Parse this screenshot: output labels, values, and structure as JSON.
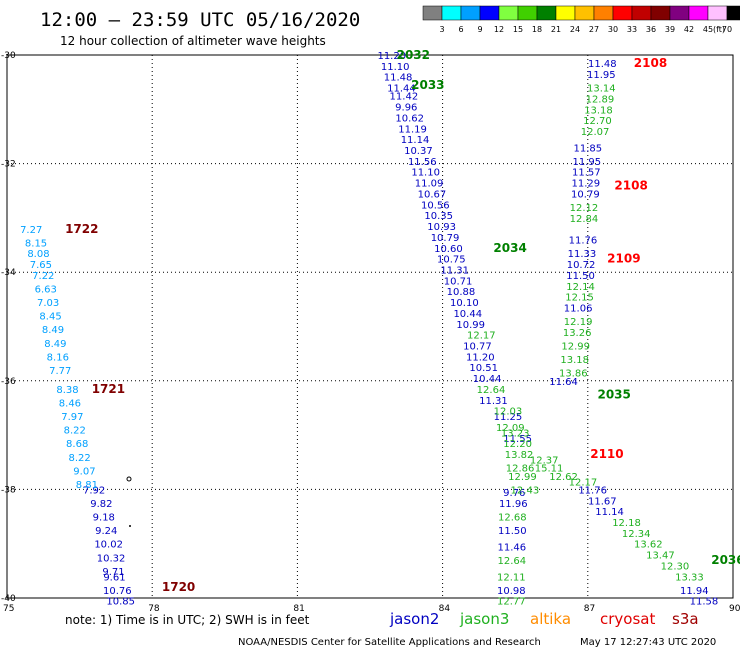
{
  "header": {
    "title": "12:00 – 23:59 UTC 05/16/2020",
    "subtitle": "12 hour collection of altimeter wave heights"
  },
  "colorbar": {
    "labels": [
      "3",
      "6",
      "9",
      "12",
      "15",
      "18",
      "21",
      "24",
      "27",
      "30",
      "33",
      "36",
      "39",
      "42",
      "45",
      "70"
    ],
    "unit": "(ft)",
    "colors": [
      "#808080",
      "#00ffff",
      "#00a0ff",
      "#0000ff",
      "#80ff40",
      "#40d000",
      "#008000",
      "#ffff00",
      "#ffc000",
      "#ff8000",
      "#ff0000",
      "#c00000",
      "#800000",
      "#800080",
      "#ff00ff",
      "#ffc0ff",
      "#000000"
    ]
  },
  "footer": {
    "note": "note:  1) Time is in UTC;  2) SWH is in feet",
    "credit": "NOAA/NESDIS Center for Satellite Applications and Research",
    "timestamp": "May 17 12:27:43 UTC 2020",
    "satellites": [
      {
        "name": "jason2",
        "color": "#0000c0"
      },
      {
        "name": "jason3",
        "color": "#20b020"
      },
      {
        "name": "altika",
        "color": "#ff8c00"
      },
      {
        "name": "cryosat",
        "color": "#e00000"
      },
      {
        "name": "s3a",
        "color": "#a00000"
      }
    ]
  },
  "chart_data": {
    "type": "scatter",
    "title": "12:00 – 23:59 UTC 05/16/2020",
    "xlim": [
      75,
      90
    ],
    "ylim": [
      -40,
      -30
    ],
    "xticks": [
      75,
      78,
      81,
      84,
      87,
      90
    ],
    "yticks": [
      -30,
      -32,
      -34,
      -36,
      -38,
      -40
    ],
    "xtick_labels": [
      "75",
      "78",
      "81",
      "84",
      "87",
      "90"
    ],
    "ytick_labels": [
      "-30",
      "-32",
      "-34",
      "-36",
      "-38",
      "-40"
    ],
    "grid": true,
    "colors": {
      "jason2": "#0000c0",
      "jason3": "#20b020",
      "s3a": "#00a0ff",
      "pass_green": "#008000",
      "pass_red": "#ff0000",
      "pass_maroon": "#800000"
    },
    "pass_labels": [
      {
        "text": "2032",
        "x": 83.05,
        "y": -30.0,
        "color": "pass_green"
      },
      {
        "text": "2033",
        "x": 83.35,
        "y": -30.55,
        "color": "pass_green"
      },
      {
        "text": "2034",
        "x": 85.05,
        "y": -33.55,
        "color": "pass_green"
      },
      {
        "text": "2035",
        "x": 87.2,
        "y": -36.25,
        "color": "pass_green"
      },
      {
        "text": "2036",
        "x": 89.55,
        "y": -39.3,
        "color": "pass_green"
      },
      {
        "text": "2108",
        "x": 87.95,
        "y": -30.15,
        "color": "pass_red"
      },
      {
        "text": "2108",
        "x": 87.55,
        "y": -32.4,
        "color": "pass_red"
      },
      {
        "text": "2109",
        "x": 87.4,
        "y": -33.75,
        "color": "pass_red"
      },
      {
        "text": "2110",
        "x": 87.05,
        "y": -37.35,
        "color": "pass_red"
      },
      {
        "text": "1722",
        "x": 76.2,
        "y": -33.2,
        "color": "pass_maroon"
      },
      {
        "text": "1721",
        "x": 76.75,
        "y": -36.15,
        "color": "pass_maroon"
      },
      {
        "text": "1720",
        "x": 78.2,
        "y": -39.8,
        "color": "pass_maroon"
      }
    ],
    "series": [
      {
        "name": "jason2",
        "color": "jason2",
        "points": [
          [
            82.95,
            -30.0,
            "11.20"
          ],
          [
            83.02,
            -30.2,
            "11.10"
          ],
          [
            83.08,
            -30.4,
            "11.48"
          ],
          [
            83.15,
            -30.6,
            "11.44"
          ],
          [
            83.2,
            -30.75,
            "11.42"
          ],
          [
            83.25,
            -30.95,
            "9.96"
          ],
          [
            83.32,
            -31.15,
            "10.62"
          ],
          [
            83.38,
            -31.35,
            "11.19"
          ],
          [
            83.43,
            -31.55,
            "11.14"
          ],
          [
            83.5,
            -31.75,
            "10.37"
          ],
          [
            83.58,
            -31.95,
            "11.56"
          ],
          [
            83.65,
            -32.15,
            "11.10"
          ],
          [
            83.72,
            -32.35,
            "11.09"
          ],
          [
            83.78,
            -32.55,
            "10.67"
          ],
          [
            83.85,
            -32.75,
            "10.56"
          ],
          [
            83.92,
            -32.95,
            "10.35"
          ],
          [
            83.98,
            -33.15,
            "10.93"
          ],
          [
            84.05,
            -33.35,
            "10.79"
          ],
          [
            84.12,
            -33.55,
            "10.60"
          ],
          [
            84.18,
            -33.75,
            "10.75"
          ],
          [
            84.25,
            -33.95,
            "11.31"
          ],
          [
            84.32,
            -34.15,
            "10.71"
          ],
          [
            84.38,
            -34.35,
            "10.88"
          ],
          [
            84.45,
            -34.55,
            "10.10"
          ],
          [
            84.52,
            -34.75,
            "10.44"
          ],
          [
            84.58,
            -34.95,
            "10.99"
          ],
          [
            84.72,
            -35.35,
            "10.77"
          ],
          [
            84.78,
            -35.55,
            "11.20"
          ],
          [
            84.85,
            -35.75,
            "10.51"
          ],
          [
            84.92,
            -35.95,
            "10.44"
          ],
          [
            85.05,
            -36.35,
            "11.31"
          ],
          [
            85.35,
            -36.65,
            "11.25"
          ],
          [
            85.55,
            -37.05,
            "11.55"
          ],
          [
            85.48,
            -38.05,
            "9.76"
          ],
          [
            85.46,
            -38.25,
            "11.96"
          ],
          [
            85.44,
            -38.75,
            "11.50"
          ],
          [
            85.43,
            -39.05,
            "11.46"
          ],
          [
            85.42,
            -39.85,
            "10.98"
          ],
          [
            87.3,
            -30.15,
            "11.48"
          ],
          [
            87.28,
            -30.35,
            "11.95"
          ],
          [
            87.0,
            -31.7,
            "11.85"
          ],
          [
            86.98,
            -31.95,
            "11.95"
          ],
          [
            86.97,
            -32.15,
            "11.57"
          ],
          [
            86.96,
            -32.35,
            "11.29"
          ],
          [
            86.95,
            -32.55,
            "10.79"
          ],
          [
            86.9,
            -33.4,
            "11.76"
          ],
          [
            86.88,
            -33.65,
            "11.33"
          ],
          [
            86.86,
            -33.85,
            "10.72"
          ],
          [
            86.85,
            -34.05,
            "11.50"
          ],
          [
            86.8,
            -34.65,
            "11.06"
          ],
          [
            86.5,
            -36.0,
            "11.64"
          ],
          [
            87.1,
            -38.0,
            "11.76"
          ],
          [
            87.3,
            -38.2,
            "11.67"
          ],
          [
            87.45,
            -38.4,
            "11.14"
          ],
          [
            89.2,
            -39.85,
            "11.94"
          ],
          [
            89.4,
            -40.05,
            "11.58"
          ],
          [
            76.8,
            -38.0,
            "7.92"
          ],
          [
            76.95,
            -38.25,
            "9.82"
          ],
          [
            77.0,
            -38.5,
            "9.18"
          ],
          [
            77.05,
            -38.75,
            "9.24"
          ],
          [
            77.1,
            -39.0,
            "10.02"
          ],
          [
            77.15,
            -39.25,
            "10.32"
          ],
          [
            77.2,
            -39.5,
            "9.71"
          ],
          [
            77.22,
            -39.6,
            "9.61"
          ],
          [
            77.28,
            -39.85,
            "10.76"
          ],
          [
            77.35,
            -40.05,
            "10.85"
          ]
        ]
      },
      {
        "name": "jason3",
        "color": "jason3",
        "points": [
          [
            87.28,
            -30.6,
            "13.14"
          ],
          [
            87.25,
            -30.8,
            "12.89"
          ],
          [
            87.22,
            -31.0,
            "13.18"
          ],
          [
            87.2,
            -31.2,
            "12.70"
          ],
          [
            87.15,
            -31.4,
            "12.07"
          ],
          [
            86.92,
            -32.8,
            "12.12"
          ],
          [
            86.92,
            -33.0,
            "12.84"
          ],
          [
            86.85,
            -34.25,
            "12.14"
          ],
          [
            86.83,
            -34.45,
            "12.15"
          ],
          [
            86.8,
            -34.9,
            "12.19"
          ],
          [
            86.78,
            -35.1,
            "13.26"
          ],
          [
            86.75,
            -35.35,
            "12.99"
          ],
          [
            86.73,
            -35.6,
            "13.18"
          ],
          [
            86.7,
            -35.85,
            "13.86"
          ],
          [
            84.8,
            -35.15,
            "12.17"
          ],
          [
            85.0,
            -36.15,
            "12.64"
          ],
          [
            85.35,
            -36.55,
            "12.03"
          ],
          [
            85.4,
            -36.85,
            "12.09"
          ],
          [
            85.5,
            -36.95,
            "13.23"
          ],
          [
            85.55,
            -37.15,
            "12.20"
          ],
          [
            85.58,
            -37.35,
            "13.82"
          ],
          [
            85.6,
            -37.6,
            "12.86"
          ],
          [
            85.65,
            -37.75,
            "12.99"
          ],
          [
            85.7,
            -38.0,
            "12.43"
          ],
          [
            86.1,
            -37.45,
            "12.37"
          ],
          [
            86.2,
            -37.6,
            "15.11"
          ],
          [
            86.5,
            -37.75,
            "12.62"
          ],
          [
            86.9,
            -37.85,
            "12.17"
          ],
          [
            85.44,
            -38.5,
            "12.68"
          ],
          [
            85.43,
            -39.3,
            "12.64"
          ],
          [
            85.42,
            -39.6,
            "12.11"
          ],
          [
            85.42,
            -40.05,
            "12.77"
          ],
          [
            87.8,
            -38.6,
            "12.18"
          ],
          [
            88.0,
            -38.8,
            "12.34"
          ],
          [
            88.25,
            -39.0,
            "13.62"
          ],
          [
            88.5,
            -39.2,
            "13.47"
          ],
          [
            88.8,
            -39.4,
            "12.30"
          ],
          [
            89.1,
            -39.6,
            "13.33"
          ]
        ]
      },
      {
        "name": "s3a",
        "color": "s3a",
        "points": [
          [
            75.5,
            -33.2,
            "7.27"
          ],
          [
            75.6,
            -33.45,
            "8.15"
          ],
          [
            75.65,
            -33.65,
            "8.08"
          ],
          [
            75.7,
            -33.85,
            "7.65"
          ],
          [
            75.75,
            -34.05,
            "7.22"
          ],
          [
            75.8,
            -34.3,
            "6.63"
          ],
          [
            75.85,
            -34.55,
            "7.03"
          ],
          [
            75.9,
            -34.8,
            "8.45"
          ],
          [
            75.95,
            -35.05,
            "8.49"
          ],
          [
            76.0,
            -35.3,
            "8.49"
          ],
          [
            76.05,
            -35.55,
            "8.16"
          ],
          [
            76.1,
            -35.8,
            "7.77"
          ],
          [
            76.25,
            -36.15,
            "8.38"
          ],
          [
            76.3,
            -36.4,
            "8.46"
          ],
          [
            76.35,
            -36.65,
            "7.97"
          ],
          [
            76.4,
            -36.9,
            "8.22"
          ],
          [
            76.45,
            -37.15,
            "8.68"
          ],
          [
            76.5,
            -37.4,
            "8.22"
          ],
          [
            76.6,
            -37.65,
            "9.07"
          ],
          [
            76.65,
            -37.9,
            "8.81"
          ]
        ]
      }
    ]
  }
}
